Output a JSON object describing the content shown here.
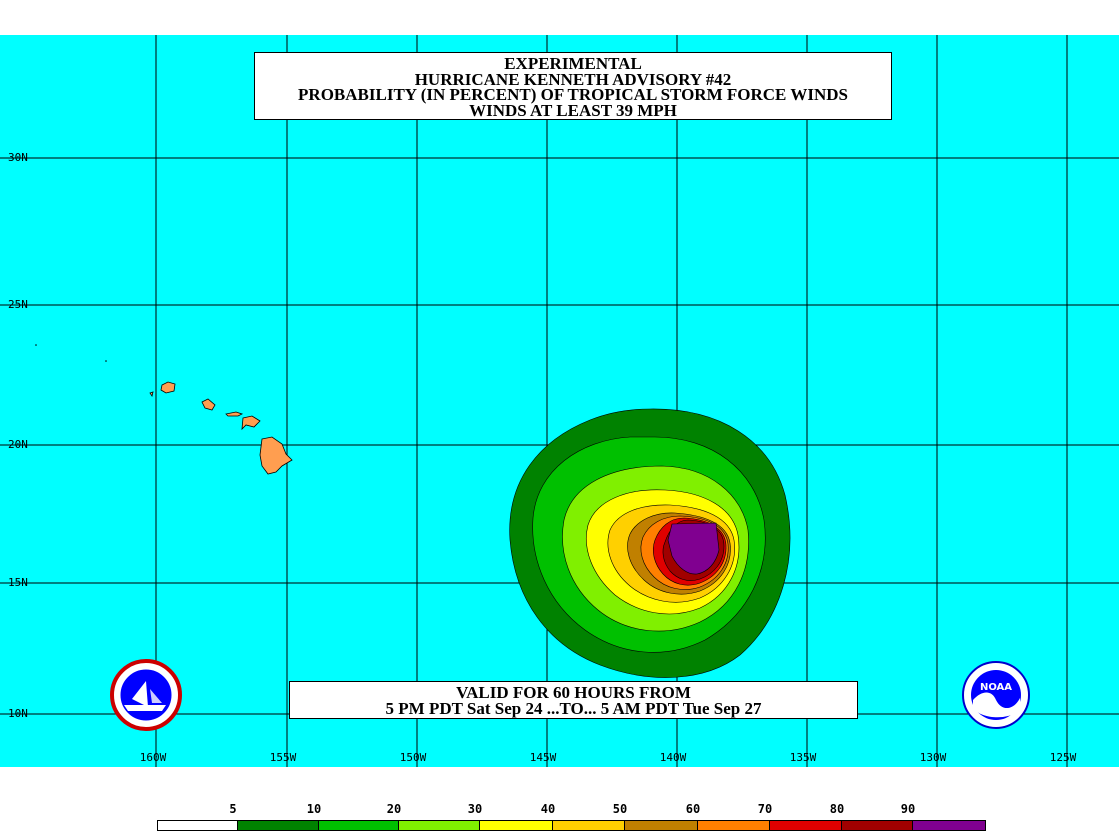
{
  "title": {
    "line1": "EXPERIMENTAL",
    "line2": "HURRICANE KENNETH ADVISORY #42",
    "line3": "PROBABILITY (IN PERCENT) OF TROPICAL STORM FORCE WINDS",
    "line4": "WINDS AT LEAST 39 MPH"
  },
  "valid": {
    "line1": "VALID FOR 60 HOURS FROM",
    "line2": "5 PM PDT Sat Sep 24 ...TO... 5 AM PDT Tue Sep 27"
  },
  "lat_labels": [
    "30N",
    "25N",
    "20N",
    "15N",
    "10N"
  ],
  "lon_labels": [
    "160W",
    "155W",
    "150W",
    "145W",
    "140W",
    "135W",
    "130W",
    "125W"
  ],
  "legend": {
    "labels": [
      "5",
      "10",
      "20",
      "30",
      "40",
      "50",
      "60",
      "70",
      "80",
      "90"
    ],
    "colors": [
      "#ffffff",
      "#008200",
      "#00c000",
      "#80f000",
      "#ffff00",
      "#ffd000",
      "#c08000",
      "#ff8000",
      "#e00000",
      "#a00000",
      "#800090"
    ]
  },
  "colors": {
    "ocean": "#00ffff",
    "land": "#ff9e50",
    "grid": "#000000"
  },
  "icons": {
    "left_logo": "nws-logo-icon",
    "right_logo": "noaa-logo-icon"
  }
}
